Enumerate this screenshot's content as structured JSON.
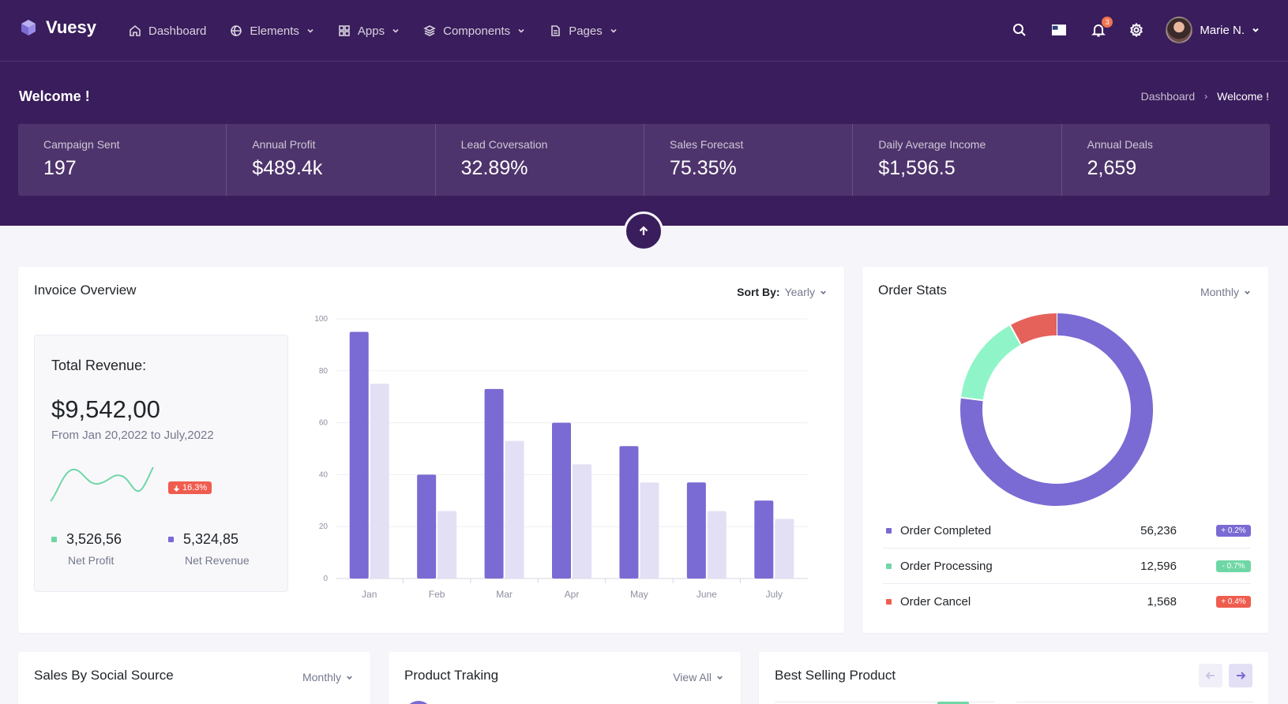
{
  "brand": {
    "name": "Vuesy"
  },
  "nav": {
    "items": [
      {
        "label": "Dashboard",
        "icon": "home-icon",
        "dropdown": false
      },
      {
        "label": "Elements",
        "icon": "globe-icon",
        "dropdown": true
      },
      {
        "label": "Apps",
        "icon": "apps-icon",
        "dropdown": true
      },
      {
        "label": "Components",
        "icon": "layers-icon",
        "dropdown": true
      },
      {
        "label": "Pages",
        "icon": "file-icon",
        "dropdown": true
      }
    ],
    "notification_count": "3",
    "user_name": "Marie N."
  },
  "page": {
    "title": "Welcome !",
    "breadcrumb": [
      "Dashboard",
      "Welcome !"
    ]
  },
  "stats": [
    {
      "label": "Campaign Sent",
      "value": "197"
    },
    {
      "label": "Annual Profit",
      "value": "$489.4k"
    },
    {
      "label": "Lead Coversation",
      "value": "32.89%"
    },
    {
      "label": "Sales Forecast",
      "value": "75.35%"
    },
    {
      "label": "Daily Average Income",
      "value": "$1,596.5"
    },
    {
      "label": "Annual Deals",
      "value": "2,659"
    }
  ],
  "invoice": {
    "title": "Invoice Overview",
    "sort_label": "Sort By:",
    "sort_value": "Yearly",
    "revenue_title": "Total Revenue:",
    "revenue_amount": "$9,542,00",
    "revenue_range": "From Jan 20,2022 to July,2022",
    "change": "16.3%",
    "net_profit_value": "3,526,56",
    "net_profit_label": "Net Profit",
    "net_revenue_value": "5,324,85",
    "net_revenue_label": "Net Revenue"
  },
  "chart_data": {
    "type": "bar",
    "categories": [
      "Jan",
      "Feb",
      "Mar",
      "Apr",
      "May",
      "June",
      "July"
    ],
    "series": [
      {
        "values": [
          95,
          40,
          73,
          60,
          51,
          37,
          30
        ],
        "color": "#7a6ad3"
      },
      {
        "values": [
          75,
          26,
          53,
          44,
          37,
          26,
          23
        ],
        "color": "#e3e0f5"
      }
    ],
    "ylim": [
      0,
      100
    ],
    "yticks": [
      0,
      20,
      40,
      60,
      80,
      100
    ],
    "grid": true
  },
  "order_stats": {
    "title": "Order Stats",
    "period": "Monthly",
    "rows": [
      {
        "name": "Order Completed",
        "value": "56,236",
        "change": "+ 0.2%",
        "dot": "#7a6ad3",
        "badge": "#7a6ad3"
      },
      {
        "name": "Order Processing",
        "value": "12,596",
        "change": "- 0.7%",
        "dot": "#6fd7a6",
        "badge": "#6fd7a6"
      },
      {
        "name": "Order Cancel",
        "value": "1,568",
        "change": "+ 0.4%",
        "dot": "#ef5d4f",
        "badge": "#ef5d4f"
      }
    ],
    "donut": [
      {
        "name": "Order Completed",
        "value": 77,
        "color": "#7a6ad3"
      },
      {
        "name": "Order Processing",
        "value": 15,
        "color": "#8ff5c9"
      },
      {
        "name": "Order Cancel",
        "value": 8,
        "color": "#e5625a"
      }
    ]
  },
  "social": {
    "title": "Sales By Social Source",
    "period": "Monthly"
  },
  "tracking": {
    "title": "Product Traking",
    "view": "View All"
  },
  "best": {
    "title": "Best Selling Product"
  },
  "colors": {
    "header": "#3a1d5c",
    "accent": "#7a6ad3"
  }
}
